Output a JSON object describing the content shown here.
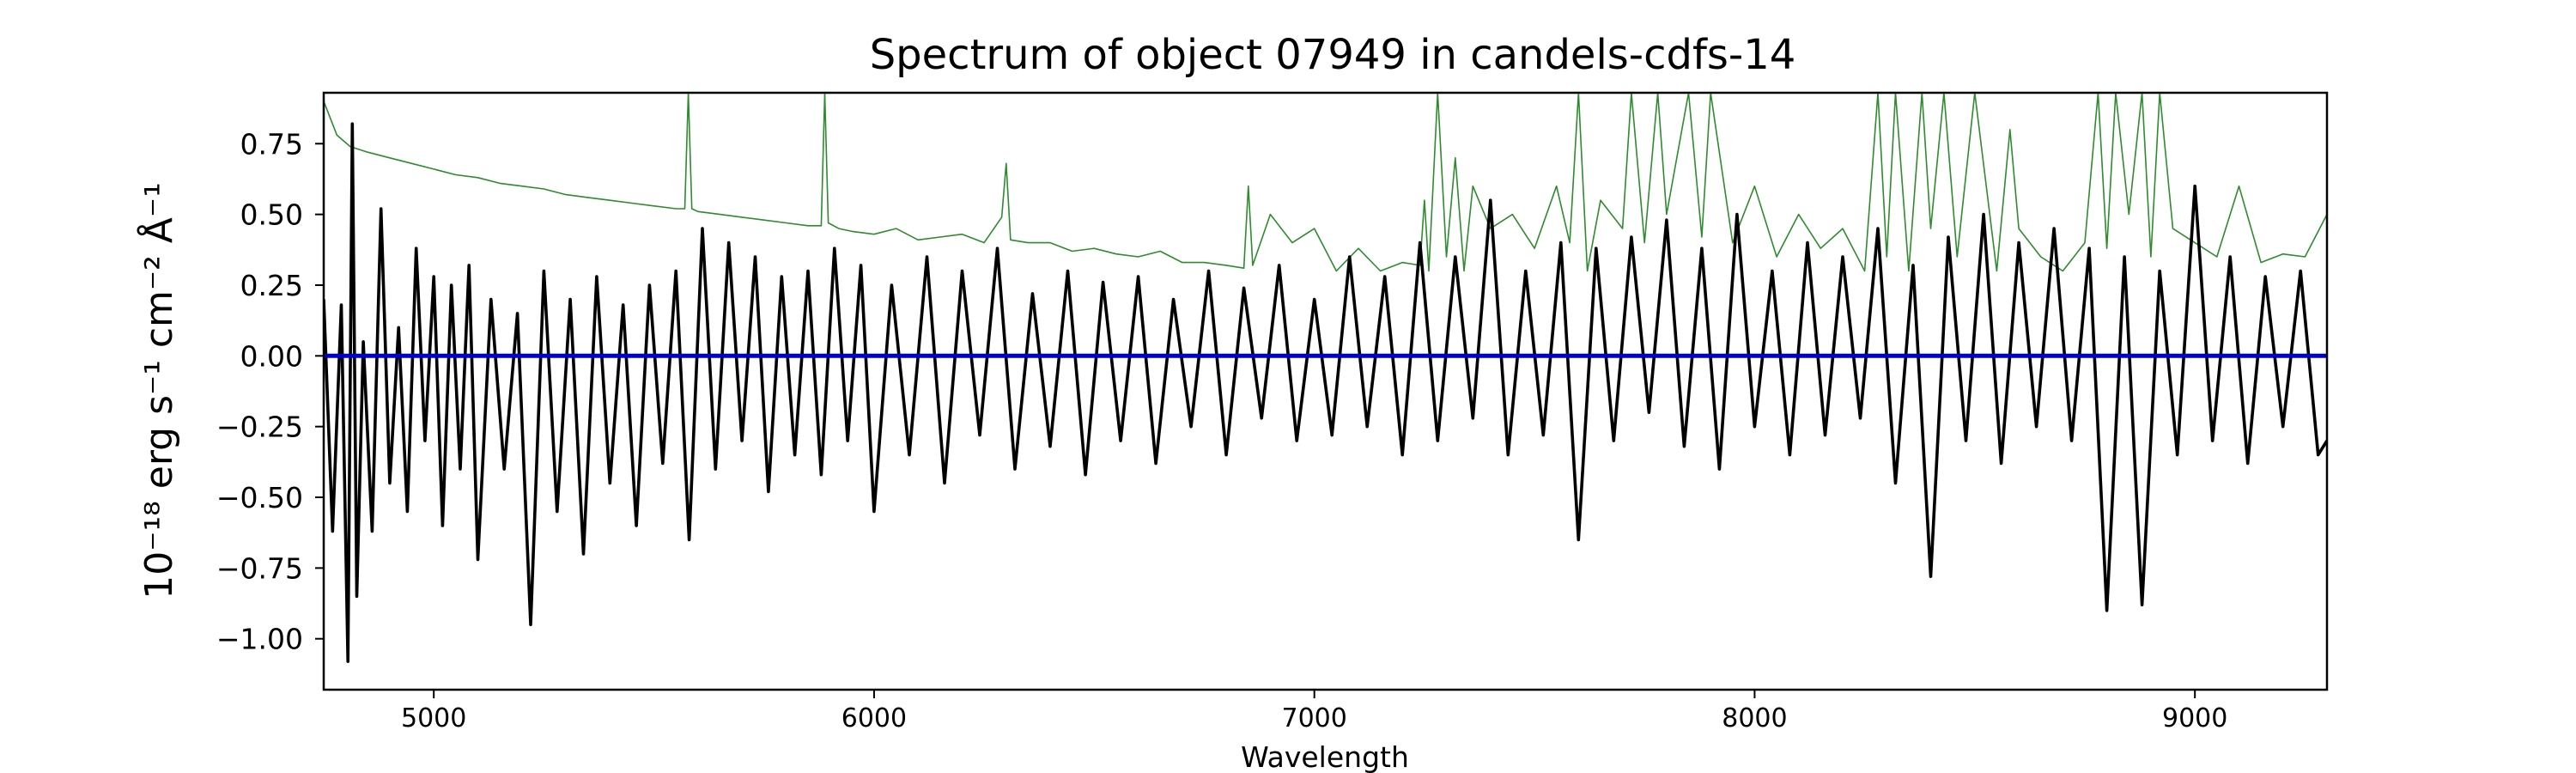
{
  "chart_data": {
    "type": "line",
    "title": "Spectrum of object 07949 in candels-cdfs-14",
    "xlabel": "Wavelength",
    "ylabel": "10⁻¹⁸ erg s⁻¹ cm⁻² Å⁻¹",
    "xlim": [
      4750,
      9300
    ],
    "ylim": [
      -1.18,
      0.93
    ],
    "xticks": [
      5000,
      6000,
      7000,
      8000,
      9000
    ],
    "xtick_labels": [
      "5000",
      "6000",
      "7000",
      "8000",
      "9000"
    ],
    "yticks": [
      0.75,
      0.5,
      0.25,
      0.0,
      -0.25,
      -0.5,
      -0.75,
      -1.0
    ],
    "ytick_labels": [
      "0.75",
      "0.50",
      "0.25",
      "0.00",
      "−0.25",
      "−0.50",
      "−0.75",
      "−1.00"
    ],
    "grid": false,
    "series": [
      {
        "color": "#000000",
        "x": [
          4750,
          4770,
          4790,
          4805,
          4815,
          4825,
          4840,
          4860,
          4880,
          4900,
          4920,
          4940,
          4960,
          4980,
          5000,
          5020,
          5040,
          5060,
          5080,
          5100,
          5130,
          5160,
          5190,
          5220,
          5250,
          5280,
          5310,
          5340,
          5370,
          5400,
          5430,
          5460,
          5490,
          5520,
          5550,
          5580,
          5610,
          5640,
          5670,
          5700,
          5730,
          5760,
          5790,
          5820,
          5850,
          5880,
          5910,
          5940,
          5970,
          6000,
          6040,
          6080,
          6120,
          6160,
          6200,
          6240,
          6280,
          6320,
          6360,
          6400,
          6440,
          6480,
          6520,
          6560,
          6600,
          6640,
          6680,
          6720,
          6760,
          6800,
          6840,
          6880,
          6920,
          6960,
          7000,
          7040,
          7080,
          7120,
          7160,
          7200,
          7240,
          7280,
          7320,
          7360,
          7400,
          7440,
          7480,
          7520,
          7560,
          7600,
          7640,
          7680,
          7720,
          7760,
          7800,
          7840,
          7880,
          7920,
          7960,
          8000,
          8040,
          8080,
          8120,
          8160,
          8200,
          8240,
          8280,
          8320,
          8360,
          8400,
          8440,
          8480,
          8520,
          8560,
          8600,
          8640,
          8680,
          8720,
          8760,
          8800,
          8840,
          8880,
          8920,
          8960,
          9000,
          9040,
          9080,
          9120,
          9160,
          9200,
          9240,
          9280,
          9300
        ],
        "y": [
          0.2,
          -0.62,
          0.18,
          -1.08,
          0.82,
          -0.85,
          0.05,
          -0.62,
          0.52,
          -0.45,
          0.1,
          -0.55,
          0.38,
          -0.3,
          0.28,
          -0.6,
          0.25,
          -0.4,
          0.32,
          -0.72,
          0.2,
          -0.4,
          0.15,
          -0.95,
          0.3,
          -0.55,
          0.2,
          -0.7,
          0.28,
          -0.45,
          0.18,
          -0.6,
          0.25,
          -0.38,
          0.3,
          -0.65,
          0.45,
          -0.4,
          0.4,
          -0.3,
          0.35,
          -0.48,
          0.28,
          -0.35,
          0.3,
          -0.42,
          0.38,
          -0.3,
          0.32,
          -0.55,
          0.25,
          -0.35,
          0.35,
          -0.45,
          0.3,
          -0.28,
          0.38,
          -0.4,
          0.22,
          -0.32,
          0.3,
          -0.42,
          0.26,
          -0.3,
          0.28,
          -0.38,
          0.2,
          -0.25,
          0.3,
          -0.35,
          0.24,
          -0.22,
          0.32,
          -0.3,
          0.2,
          -0.28,
          0.35,
          -0.25,
          0.28,
          -0.35,
          0.4,
          -0.3,
          0.35,
          -0.22,
          0.55,
          -0.35,
          0.3,
          -0.28,
          0.4,
          -0.65,
          0.38,
          -0.3,
          0.42,
          -0.2,
          0.48,
          -0.32,
          0.38,
          -0.4,
          0.5,
          -0.25,
          0.3,
          -0.35,
          0.4,
          -0.28,
          0.35,
          -0.22,
          0.45,
          -0.45,
          0.32,
          -0.78,
          0.42,
          -0.3,
          0.5,
          -0.38,
          0.4,
          -0.25,
          0.45,
          -0.3,
          0.38,
          -0.9,
          0.35,
          -0.88,
          0.3,
          -0.35,
          0.6,
          -0.3,
          0.35,
          -0.38,
          0.28,
          -0.25,
          0.3,
          -0.35,
          -0.3
        ]
      },
      {
        "color": "#0000cc",
        "x": [
          4750,
          9300
        ],
        "y": [
          0.0,
          0.0
        ]
      },
      {
        "color": "#2e8b2e",
        "x": [
          4750,
          4780,
          4810,
          4850,
          4900,
          4950,
          5000,
          5050,
          5100,
          5150,
          5200,
          5250,
          5300,
          5350,
          5400,
          5450,
          5500,
          5550,
          5570,
          5578,
          5586,
          5600,
          5650,
          5700,
          5750,
          5800,
          5850,
          5880,
          5888,
          5896,
          5920,
          5950,
          6000,
          6050,
          6100,
          6150,
          6200,
          6250,
          6290,
          6300,
          6310,
          6350,
          6400,
          6450,
          6500,
          6550,
          6600,
          6650,
          6700,
          6750,
          6800,
          6840,
          6850,
          6860,
          6900,
          6950,
          7000,
          7050,
          7100,
          7150,
          7200,
          7240,
          7250,
          7260,
          7280,
          7300,
          7320,
          7340,
          7360,
          7400,
          7450,
          7500,
          7550,
          7580,
          7600,
          7620,
          7650,
          7700,
          7720,
          7750,
          7780,
          7800,
          7850,
          7880,
          7900,
          7950,
          8000,
          8050,
          8100,
          8150,
          8200,
          8250,
          8280,
          8300,
          8320,
          8350,
          8380,
          8400,
          8430,
          8460,
          8500,
          8550,
          8580,
          8600,
          8650,
          8680,
          8700,
          8750,
          8780,
          8800,
          8820,
          8850,
          8880,
          8900,
          8920,
          8950,
          9000,
          9050,
          9100,
          9150,
          9200,
          9250,
          9300
        ],
        "y": [
          0.9,
          0.78,
          0.74,
          0.72,
          0.7,
          0.68,
          0.66,
          0.64,
          0.63,
          0.61,
          0.6,
          0.59,
          0.57,
          0.56,
          0.55,
          0.54,
          0.53,
          0.52,
          0.52,
          0.93,
          0.52,
          0.51,
          0.5,
          0.49,
          0.48,
          0.47,
          0.46,
          0.46,
          0.93,
          0.47,
          0.45,
          0.44,
          0.43,
          0.45,
          0.41,
          0.42,
          0.43,
          0.4,
          0.49,
          0.68,
          0.41,
          0.4,
          0.4,
          0.37,
          0.38,
          0.36,
          0.35,
          0.37,
          0.33,
          0.33,
          0.32,
          0.31,
          0.6,
          0.32,
          0.5,
          0.4,
          0.45,
          0.3,
          0.38,
          0.3,
          0.33,
          0.32,
          0.55,
          0.3,
          0.93,
          0.35,
          0.7,
          0.3,
          0.6,
          0.45,
          0.5,
          0.38,
          0.6,
          0.4,
          0.93,
          0.3,
          0.55,
          0.45,
          0.93,
          0.4,
          0.93,
          0.5,
          0.93,
          0.42,
          0.93,
          0.4,
          0.6,
          0.35,
          0.5,
          0.38,
          0.45,
          0.3,
          0.93,
          0.35,
          0.93,
          0.3,
          0.93,
          0.45,
          0.93,
          0.35,
          0.93,
          0.3,
          0.8,
          0.45,
          0.35,
          0.32,
          0.3,
          0.4,
          0.93,
          0.38,
          0.93,
          0.5,
          0.93,
          0.35,
          0.93,
          0.45,
          0.4,
          0.35,
          0.6,
          0.33,
          0.36,
          0.35,
          0.5
        ]
      }
    ]
  }
}
